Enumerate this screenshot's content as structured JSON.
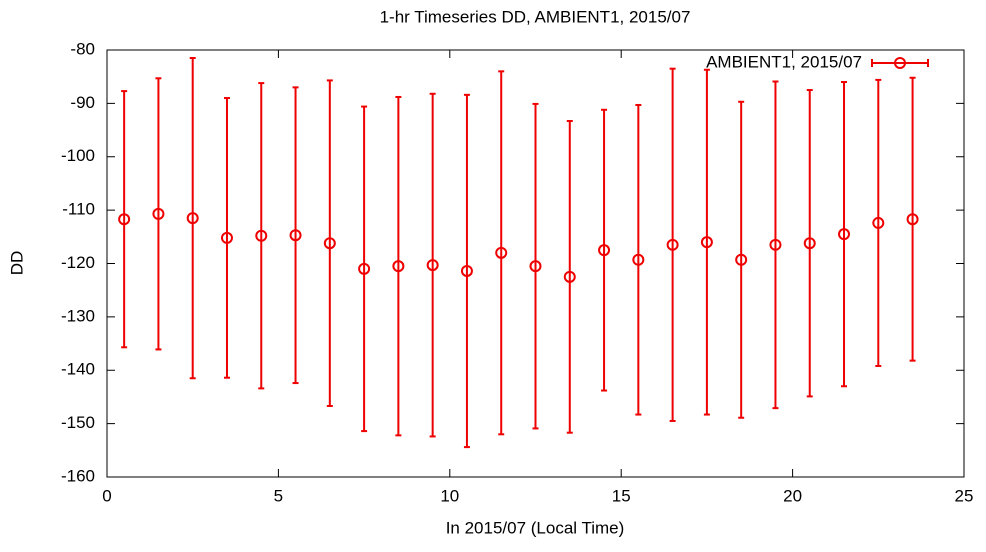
{
  "chart_data": {
    "type": "errorbar",
    "title": "1-hr Timeseries DD, AMBIENT1, 2015/07",
    "x_label": "In 2015/07 (Local Time)",
    "y_label": "DD",
    "xlim": [
      0,
      25
    ],
    "xticks": [
      0,
      5,
      10,
      15,
      20,
      25
    ],
    "ylim": [
      -160,
      -80
    ],
    "yticks": [
      -160,
      -150,
      -140,
      -130,
      -120,
      -110,
      -100,
      -90,
      -80
    ],
    "legend": "top-right",
    "grid": false,
    "series": [
      {
        "name": "AMBIENT1, 2015/07",
        "color": "#ee0000",
        "x": [
          0.5,
          1.5,
          2.5,
          3.5,
          4.5,
          5.5,
          6.5,
          7.5,
          8.5,
          9.5,
          10.5,
          11.5,
          12.5,
          13.5,
          14.5,
          15.5,
          16.5,
          17.5,
          18.5,
          19.5,
          20.5,
          21.5,
          22.5,
          23.5
        ],
        "values": [
          -111.7,
          -110.7,
          -111.5,
          -115.2,
          -114.8,
          -114.7,
          -116.2,
          -121,
          -120.5,
          -120.3,
          -121.4,
          -118,
          -120.5,
          -122.5,
          -117.5,
          -119.3,
          -116.5,
          -116,
          -119.3,
          -116.5,
          -116.2,
          -114.5,
          -112.4,
          -111.7
        ],
        "errors": [
          24,
          25.4,
          30,
          26.2,
          28.6,
          27.7,
          30.5,
          30.4,
          31.7,
          32.1,
          33,
          34,
          30.4,
          29.2,
          26.3,
          29,
          33,
          32.3,
          29.6,
          30.6,
          28.7,
          28.5,
          26.8,
          26.5
        ]
      }
    ]
  }
}
